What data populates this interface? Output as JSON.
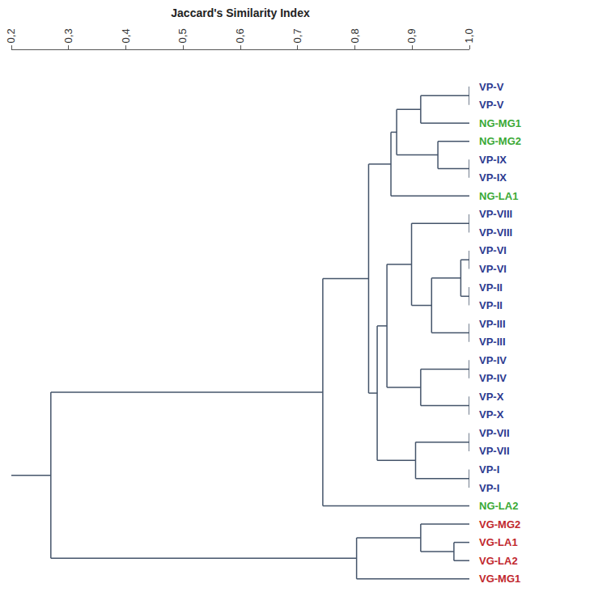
{
  "chart_data": {
    "type": "dendrogram",
    "x_label": "Jaccard's Similarity Index",
    "xlim": [
      0.2,
      1.0
    ],
    "xticks": [
      {
        "value": 0.2,
        "label": "0,2"
      },
      {
        "value": 0.3,
        "label": "0,3"
      },
      {
        "value": 0.4,
        "label": "0,4"
      },
      {
        "value": 0.5,
        "label": "0,5"
      },
      {
        "value": 0.6,
        "label": "0,6"
      },
      {
        "value": 0.7,
        "label": "0,7"
      },
      {
        "value": 0.8,
        "label": "0,8"
      },
      {
        "value": 0.9,
        "label": "0,9"
      },
      {
        "value": 1.0,
        "label": "1,0"
      }
    ],
    "grid": false,
    "tick_labels": "x",
    "tree": {
      "height": 0.269,
      "children": [
        {
          "height": 0.744,
          "children": [
            {
              "height": 0.824,
              "children": [
                {
                  "height": 0.863,
                  "children": [
                    {
                      "height": 0.873,
                      "children": [
                        {
                          "height": 0.915,
                          "children": [
                            {
                              "height": 1.0,
                              "children": [
                                {
                                  "label": "VP-V",
                                  "color": "#2b3990"
                                },
                                {
                                  "label": "VP-V",
                                  "color": "#2b3990"
                                }
                              ]
                            },
                            {
                              "label": "NG-MG1",
                              "color": "#3aa935"
                            }
                          ]
                        },
                        {
                          "height": 0.945,
                          "children": [
                            {
                              "label": "NG-MG2",
                              "color": "#3aa935"
                            },
                            {
                              "height": 1.0,
                              "children": [
                                {
                                  "label": "VP-IX",
                                  "color": "#2b3990"
                                },
                                {
                                  "label": "VP-IX",
                                  "color": "#2b3990"
                                }
                              ]
                            }
                          ]
                        }
                      ]
                    },
                    {
                      "label": "NG-LA1",
                      "color": "#3aa935"
                    }
                  ]
                },
                {
                  "height": 0.839,
                  "children": [
                    {
                      "height": 0.856,
                      "children": [
                        {
                          "height": 0.899,
                          "children": [
                            {
                              "height": 1.0,
                              "children": [
                                {
                                  "label": "VP-VIII",
                                  "color": "#2b3990"
                                },
                                {
                                  "label": "VP-VIII",
                                  "color": "#2b3990"
                                }
                              ]
                            },
                            {
                              "height": 0.934,
                              "children": [
                                {
                                  "height": 0.985,
                                  "children": [
                                    {
                                      "height": 1.0,
                                      "children": [
                                        {
                                          "label": "VP-VI",
                                          "color": "#2b3990"
                                        },
                                        {
                                          "label": "VP-VI",
                                          "color": "#2b3990"
                                        }
                                      ]
                                    },
                                    {
                                      "height": 1.0,
                                      "children": [
                                        {
                                          "label": "VP-II",
                                          "color": "#2b3990"
                                        },
                                        {
                                          "label": "VP-II",
                                          "color": "#2b3990"
                                        }
                                      ]
                                    }
                                  ]
                                },
                                {
                                  "height": 1.0,
                                  "children": [
                                    {
                                      "label": "VP-III",
                                      "color": "#2b3990"
                                    },
                                    {
                                      "label": "VP-III",
                                      "color": "#2b3990"
                                    }
                                  ]
                                }
                              ]
                            }
                          ]
                        },
                        {
                          "height": 0.915,
                          "children": [
                            {
                              "height": 1.0,
                              "children": [
                                {
                                  "label": "VP-IV",
                                  "color": "#2b3990"
                                },
                                {
                                  "label": "VP-IV",
                                  "color": "#2b3990"
                                }
                              ]
                            },
                            {
                              "height": 1.0,
                              "children": [
                                {
                                  "label": "VP-X",
                                  "color": "#2b3990"
                                },
                                {
                                  "label": "VP-X",
                                  "color": "#2b3990"
                                }
                              ]
                            }
                          ]
                        }
                      ]
                    },
                    {
                      "height": 0.906,
                      "children": [
                        {
                          "height": 1.0,
                          "children": [
                            {
                              "label": "VP-VII",
                              "color": "#2b3990"
                            },
                            {
                              "label": "VP-VII",
                              "color": "#2b3990"
                            }
                          ]
                        },
                        {
                          "height": 1.0,
                          "children": [
                            {
                              "label": "VP-I",
                              "color": "#2b3990"
                            },
                            {
                              "label": "VP-I",
                              "color": "#2b3990"
                            }
                          ]
                        }
                      ]
                    }
                  ]
                }
              ]
            },
            {
              "label": "NG-LA2",
              "color": "#3aa935"
            }
          ]
        },
        {
          "height": 0.803,
          "children": [
            {
              "height": 0.915,
              "children": [
                {
                  "label": "VG-MG2",
                  "color": "#c1272d"
                },
                {
                  "height": 0.973,
                  "children": [
                    {
                      "label": "VG-LA1",
                      "color": "#c1272d"
                    },
                    {
                      "label": "VG-LA2",
                      "color": "#c1272d"
                    }
                  ]
                }
              ]
            },
            {
              "label": "VG-MG1",
              "color": "#c1272d"
            }
          ]
        }
      ]
    }
  }
}
